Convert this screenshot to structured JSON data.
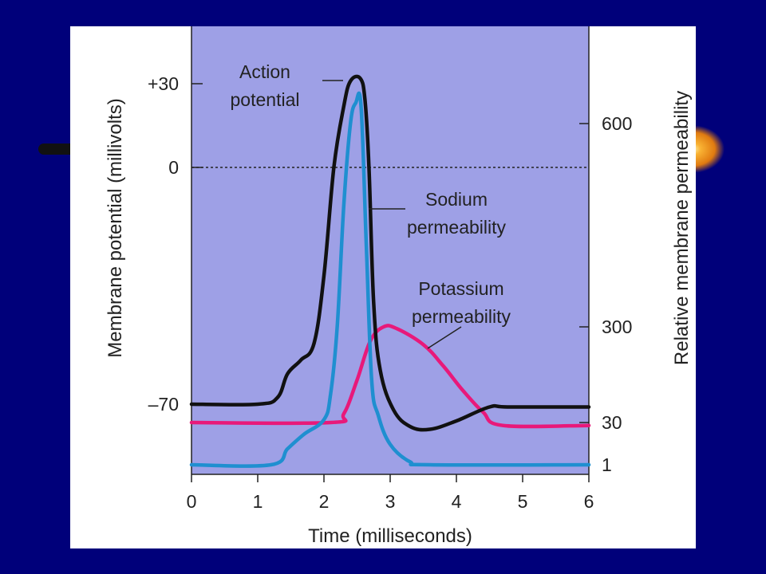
{
  "colors": {
    "slide_bg": "#00007a",
    "figure_bg": "#ffffff",
    "plot_bg": "#9ea0e6",
    "action_potential": "#111111",
    "sodium": "#1f8fd0",
    "potassium": "#e8197a",
    "glow": "#f5a623"
  },
  "chart_data": {
    "type": "line",
    "title": "",
    "xlabel": "Time (milliseconds)",
    "ylabel_left": "Membrane potential (millivolts)",
    "ylabel_right": "Relative membrane permeability",
    "xlim": [
      0,
      6
    ],
    "x_ticks": [
      "0",
      "1",
      "2",
      "3",
      "4",
      "5",
      "6"
    ],
    "y_left_ticks": [
      {
        "label": "+30",
        "value": 30
      },
      {
        "label": "0",
        "value": 0
      },
      {
        "label": "–70",
        "value": -70
      }
    ],
    "y_right_ticks": [
      {
        "label": "600",
        "value": 600
      },
      {
        "label": "300",
        "value": 300
      },
      {
        "label": "30",
        "value": 30
      },
      {
        "label": "1",
        "value": 1
      }
    ],
    "zero_line": {
      "axis": "left",
      "value": 0,
      "style": "dotted"
    },
    "series": [
      {
        "name": "Action potential",
        "label_lines": [
          "Action",
          "potential"
        ],
        "axis": "left",
        "color": "#111111",
        "points": [
          [
            0,
            -70
          ],
          [
            1,
            -70
          ],
          [
            1.3,
            -68
          ],
          [
            1.45,
            -61
          ],
          [
            1.65,
            -57
          ],
          [
            1.85,
            -52
          ],
          [
            2.0,
            -32
          ],
          [
            2.15,
            0
          ],
          [
            2.3,
            22
          ],
          [
            2.4,
            31
          ],
          [
            2.55,
            32
          ],
          [
            2.62,
            24
          ],
          [
            2.68,
            0
          ],
          [
            2.75,
            -40
          ],
          [
            2.85,
            -60
          ],
          [
            3.05,
            -72
          ],
          [
            3.3,
            -78
          ],
          [
            3.6,
            -79
          ],
          [
            4.0,
            -76
          ],
          [
            4.5,
            -71
          ],
          [
            4.8,
            -71
          ],
          [
            6,
            -71
          ]
        ]
      },
      {
        "name": "Sodium permeability",
        "label_lines": [
          "Sodium",
          "permeability"
        ],
        "axis": "right",
        "color": "#1f8fd0",
        "points": [
          [
            0,
            1
          ],
          [
            1.2,
            1
          ],
          [
            1.45,
            12
          ],
          [
            1.7,
            22
          ],
          [
            2.0,
            38
          ],
          [
            2.1,
            110
          ],
          [
            2.2,
            300
          ],
          [
            2.3,
            480
          ],
          [
            2.4,
            600
          ],
          [
            2.48,
            660
          ],
          [
            2.56,
            650
          ],
          [
            2.64,
            420
          ],
          [
            2.72,
            150
          ],
          [
            2.82,
            50
          ],
          [
            3.0,
            15
          ],
          [
            3.3,
            3
          ],
          [
            3.6,
            1
          ],
          [
            6,
            1
          ]
        ]
      },
      {
        "name": "Potassium permeability",
        "label_lines": [
          "Potassium",
          "permeability"
        ],
        "axis": "right",
        "color": "#e8197a",
        "points": [
          [
            0,
            30
          ],
          [
            2.1,
            30
          ],
          [
            2.3,
            55
          ],
          [
            2.5,
            150
          ],
          [
            2.7,
            260
          ],
          [
            2.9,
            300
          ],
          [
            3.1,
            295
          ],
          [
            3.5,
            250
          ],
          [
            3.8,
            190
          ],
          [
            4.1,
            120
          ],
          [
            4.4,
            60
          ],
          [
            4.7,
            28
          ],
          [
            6,
            28
          ]
        ]
      }
    ]
  }
}
